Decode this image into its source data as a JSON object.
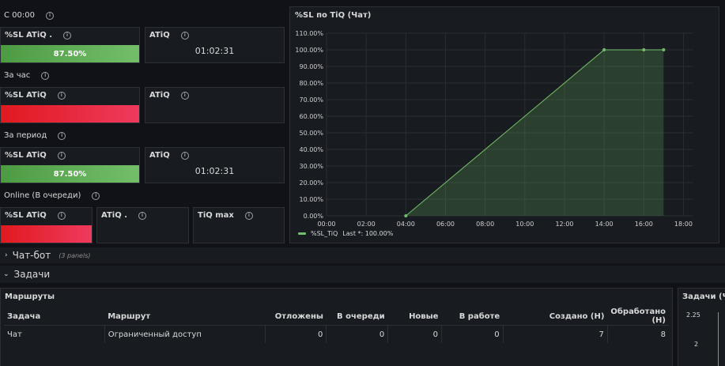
{
  "groups": [
    {
      "title": "С 00:00",
      "sl_title": "%SL ATiQ .",
      "sl_value": "87.50%",
      "sl_color": "green",
      "atiq_title": "ATiQ",
      "atiq_value": "01:02:31"
    },
    {
      "title": "За час",
      "sl_title": "%SL ATiQ",
      "sl_value": "",
      "sl_color": "red",
      "atiq_title": "ATiQ",
      "atiq_value": ""
    },
    {
      "title": "За период",
      "sl_title": "%SL ATiQ",
      "sl_value": "87.50%",
      "sl_color": "green",
      "atiq_title": "ATiQ",
      "atiq_value": "01:02:31"
    }
  ],
  "online": {
    "title": "Online (В очереди)",
    "sl_title": "%SL ATiQ",
    "atiq_title": "ATiQ .",
    "tiq_title": "TiQ max"
  },
  "chart_panel": {
    "title": "%SL по TiQ (Чат)",
    "legend": "%SL_TiQ",
    "legend_last": "Last *: 100.00%"
  },
  "chart_data": {
    "type": "area",
    "title": "%SL по TiQ (Чат)",
    "x_ticks": [
      "00:00",
      "02:00",
      "04:00",
      "06:00",
      "08:00",
      "10:00",
      "12:00",
      "14:00",
      "16:00",
      "18:00"
    ],
    "y_ticks": [
      "0.00%",
      "10.00%",
      "20.00%",
      "30.00%",
      "40.00%",
      "50.00%",
      "60.00%",
      "70.00%",
      "80.00%",
      "90.00%",
      "100.00%",
      "110.00%"
    ],
    "xlim_hours": [
      0,
      18.5
    ],
    "ylim": [
      0,
      110
    ],
    "series": [
      {
        "name": "%SL_TiQ",
        "color": "#73bf69",
        "x_hours": [
          4,
          14,
          16,
          17
        ],
        "values": [
          0,
          100,
          100,
          100
        ]
      }
    ]
  },
  "rows": {
    "chatbot": {
      "title": "Чат-бот",
      "note": "(3 panels)"
    },
    "tasks": {
      "title": "Задачи"
    }
  },
  "routes": {
    "title": "Маршруты",
    "columns": [
      "Задача",
      "Маршрут",
      "Отложены",
      "В очереди",
      "Новые",
      "В работе",
      "Создано (Н)",
      "Обработано (Н)"
    ],
    "rows": [
      [
        "Чат",
        "Ограниченный доступ",
        "0",
        "0",
        "0",
        "0",
        "7",
        "8"
      ]
    ]
  },
  "tasks_panel": {
    "title": "Задачи (Чат",
    "y_ticks": [
      "2.25",
      "2"
    ]
  }
}
